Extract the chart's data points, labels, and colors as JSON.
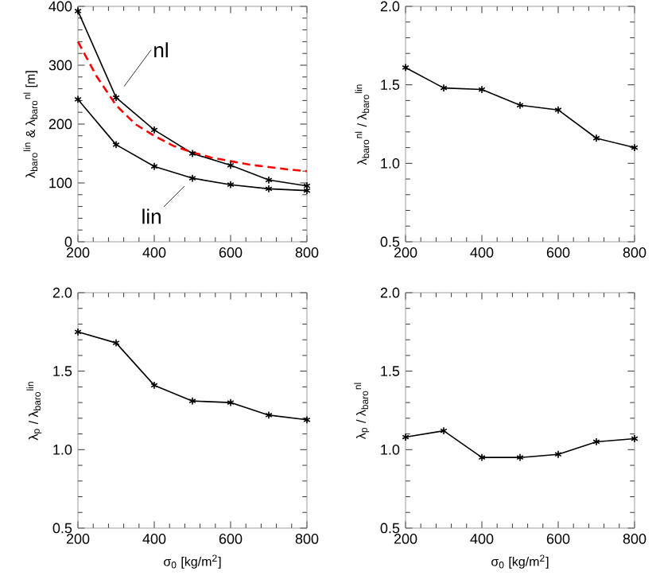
{
  "chart_data": [
    {
      "type": "line",
      "ylabel": "λ$_{baro}$$^{lin}$ & λ$_{baro}$$^{nl}$ [m]",
      "x": [
        200,
        300,
        400,
        500,
        600,
        700,
        800
      ],
      "xlim": [
        200,
        800
      ],
      "xticks": [
        200,
        400,
        600,
        800
      ],
      "ylim": [
        0,
        400
      ],
      "yticks": [
        0,
        100,
        200,
        300,
        400
      ],
      "marker": "cross",
      "line_style": "solid",
      "series": [
        {
          "name": "nl",
          "color": "#000000",
          "values": [
            392,
            245,
            190,
            150,
            130,
            105,
            95
          ]
        },
        {
          "name": "lin",
          "color": "#000000",
          "values": [
            242,
            165,
            128,
            108,
            97,
            90,
            87
          ]
        },
        {
          "color": "#ff0000",
          "marker": "none",
          "line_style": "dashed",
          "x": [
            200,
            250,
            300,
            350,
            400,
            450,
            500,
            550,
            600,
            650,
            700,
            750,
            800
          ],
          "values": [
            340,
            280,
            232,
            200,
            180,
            163,
            152,
            143,
            137,
            131,
            127,
            123,
            120
          ]
        }
      ]
    },
    {
      "type": "line",
      "ylabel": "λ$_{baro}$$^{nl}$ / λ$_{baro}$$^{lin}$",
      "x": [
        200,
        300,
        400,
        500,
        600,
        700,
        800
      ],
      "xlim": [
        200,
        800
      ],
      "xticks": [
        200,
        400,
        600,
        800
      ],
      "ylim": [
        0.5,
        2.0
      ],
      "yticks": [
        {
          "value": 0.5,
          "label": "0.5"
        },
        {
          "value": 1.0,
          "label": "1.0"
        },
        {
          "value": 1.5,
          "label": "1.5"
        },
        {
          "value": 2.0,
          "label": "2.0"
        }
      ],
      "marker": "cross",
      "line_style": "solid",
      "series": [
        {
          "color": "#000000",
          "values": [
            1.61,
            1.48,
            1.47,
            1.37,
            1.34,
            1.16,
            1.1
          ]
        }
      ]
    },
    {
      "type": "line",
      "xlabel": "σ$_{0}$ [kg/m$^{2}$]",
      "ylabel": "λ$_{p}$ / λ$_{baro}$$^{lin}$",
      "x": [
        200,
        300,
        400,
        500,
        600,
        700,
        800
      ],
      "xlim": [
        200,
        800
      ],
      "xticks": [
        200,
        400,
        600,
        800
      ],
      "ylim": [
        0.5,
        2.0
      ],
      "yticks": [
        {
          "value": 0.5,
          "label": "0.5"
        },
        {
          "value": 1.0,
          "label": "1.0"
        },
        {
          "value": 1.5,
          "label": "1.5"
        },
        {
          "value": 2.0,
          "label": "2.0"
        }
      ],
      "marker": "cross",
      "line_style": "solid",
      "series": [
        {
          "color": "#000000",
          "values": [
            1.75,
            1.68,
            1.41,
            1.31,
            1.3,
            1.22,
            1.19
          ]
        }
      ]
    },
    {
      "type": "line",
      "xlabel": "σ$_{0}$ [kg/m$^{2}$]",
      "ylabel": "λ$_{p}$ / λ$_{baro}$$^{nl}$",
      "x": [
        200,
        300,
        400,
        500,
        600,
        700,
        800
      ],
      "xlim": [
        200,
        800
      ],
      "xticks": [
        200,
        400,
        600,
        800
      ],
      "ylim": [
        0.5,
        2.0
      ],
      "yticks": [
        {
          "value": 0.5,
          "label": "0.5"
        },
        {
          "value": 1.0,
          "label": "1.0"
        },
        {
          "value": 1.5,
          "label": "1.5"
        },
        {
          "value": 2.0,
          "label": "2.0"
        }
      ],
      "marker": "cross",
      "line_style": "solid",
      "series": [
        {
          "color": "#000000",
          "values": [
            1.08,
            1.12,
            0.95,
            0.95,
            0.97,
            1.05,
            1.07
          ]
        }
      ]
    }
  ]
}
